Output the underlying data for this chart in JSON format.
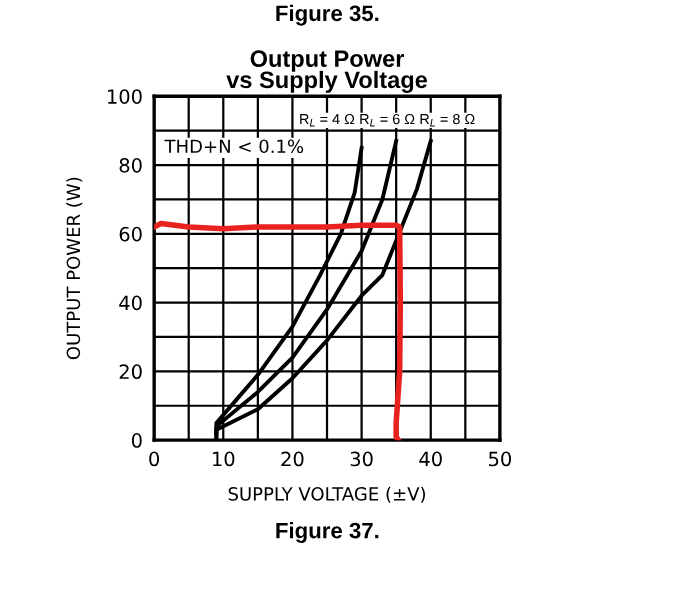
{
  "chart_data": {
    "type": "line",
    "title": "Output Power\nvs Supply Voltage",
    "xlabel": "SUPPLY VOLTAGE (±V)",
    "ylabel": "OUTPUT POWER (W)",
    "xlim": [
      0,
      50
    ],
    "ylim": [
      0,
      100
    ],
    "xticks": [
      0,
      {
        "value": 5,
        "label": null
      },
      10,
      {
        "value": 15,
        "label": null
      },
      20,
      {
        "value": 25,
        "label": null
      },
      30,
      {
        "value": 35,
        "label": null
      },
      40,
      {
        "value": 45,
        "label": null
      },
      50
    ],
    "yticks": [
      0,
      {
        "value": 10,
        "label": null
      },
      20,
      {
        "value": 30,
        "label": null
      },
      40,
      {
        "value": 50,
        "label": null
      },
      60,
      {
        "value": 70,
        "label": null
      },
      80,
      {
        "value": 90,
        "label": null
      },
      100
    ],
    "grid": true,
    "legend": false,
    "series": [
      {
        "name": "R$_{L}$ = 4 Ω",
        "color": "#000000",
        "x": [
          9,
          9,
          12,
          15,
          20,
          24,
          27,
          29,
          30
        ],
        "values": [
          2,
          5,
          12,
          19,
          33,
          48,
          60,
          72,
          85
        ]
      },
      {
        "name": "R$_{L}$ = 6 Ω",
        "color": "#000000",
        "x": [
          9,
          9,
          15,
          20,
          25,
          30,
          33,
          35
        ],
        "values": [
          1,
          4,
          14,
          24,
          38,
          55,
          70,
          87
        ]
      },
      {
        "name": "R$_{L}$ = 8 Ω",
        "color": "#000000",
        "x": [
          9,
          9,
          15,
          20,
          25,
          30,
          33,
          36,
          38,
          40
        ],
        "values": [
          0.5,
          3,
          9,
          18,
          29,
          42,
          48,
          63,
          73,
          87
        ]
      },
      {
        "color": "#e8231f",
        "x": [
          0,
          1,
          5,
          10,
          15,
          20,
          25,
          30,
          35,
          35.5,
          35.6,
          35.5,
          35,
          35,
          35.3
        ],
        "values": [
          62,
          63,
          62,
          61.5,
          62,
          62,
          62,
          62.5,
          62.5,
          62,
          40,
          20,
          5,
          1,
          0
        ]
      }
    ],
    "annotations": [
      "THD+N < 0.1%",
      "Figure 37.",
      "Figure 35."
    ]
  }
}
